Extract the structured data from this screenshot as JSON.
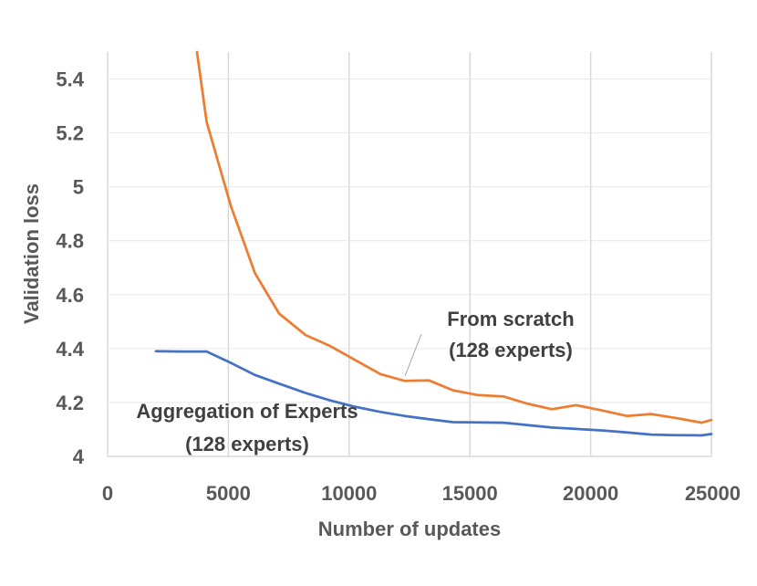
{
  "chart_data": {
    "type": "line",
    "xlabel": "Number of updates",
    "ylabel": "Validation loss",
    "xlim": [
      0,
      25000
    ],
    "ylim": [
      4,
      5.5
    ],
    "xticks": [
      "0",
      "5000",
      "10000",
      "15000",
      "20000",
      "25000"
    ],
    "yticks": [
      "4",
      "4.2",
      "4.4",
      "4.6",
      "4.8",
      "5",
      "5.2",
      "5.4"
    ],
    "grid": "vertical",
    "series": [
      {
        "name": "From scratch (128 experts)",
        "color": "#ED7D31",
        "x": [
          3700,
          4100,
          5100,
          6100,
          7100,
          8200,
          9200,
          10200,
          11300,
          12300,
          13300,
          14300,
          15300,
          16400,
          17400,
          18400,
          19400,
          20500,
          21500,
          22500,
          23500,
          24600,
          25000
        ],
        "y": [
          5.5,
          5.24,
          4.93,
          4.68,
          4.53,
          4.45,
          4.41,
          4.36,
          4.305,
          4.28,
          4.282,
          4.245,
          4.228,
          4.222,
          4.195,
          4.175,
          4.19,
          4.17,
          4.15,
          4.157,
          4.143,
          4.125,
          4.135
        ]
      },
      {
        "name": "Aggregation of Experts (128 experts)",
        "color": "#4472C4",
        "x": [
          2000,
          3000,
          4100,
          5100,
          6100,
          7100,
          8200,
          9200,
          10200,
          11300,
          12300,
          13300,
          14300,
          15300,
          16400,
          17400,
          18400,
          19400,
          20500,
          21500,
          22500,
          23500,
          24600,
          25000
        ],
        "y": [
          4.39,
          4.389,
          4.389,
          4.347,
          4.302,
          4.27,
          4.235,
          4.208,
          4.185,
          4.165,
          4.15,
          4.138,
          4.127,
          4.126,
          4.125,
          4.116,
          4.107,
          4.102,
          4.096,
          4.089,
          4.081,
          4.079,
          4.078,
          4.083
        ]
      }
    ],
    "annotations": [
      {
        "text_lines": [
          "From scratch",
          "(128 experts)"
        ]
      },
      {
        "text_lines": [
          "Aggregation of Experts",
          "(128 experts)"
        ]
      }
    ]
  }
}
